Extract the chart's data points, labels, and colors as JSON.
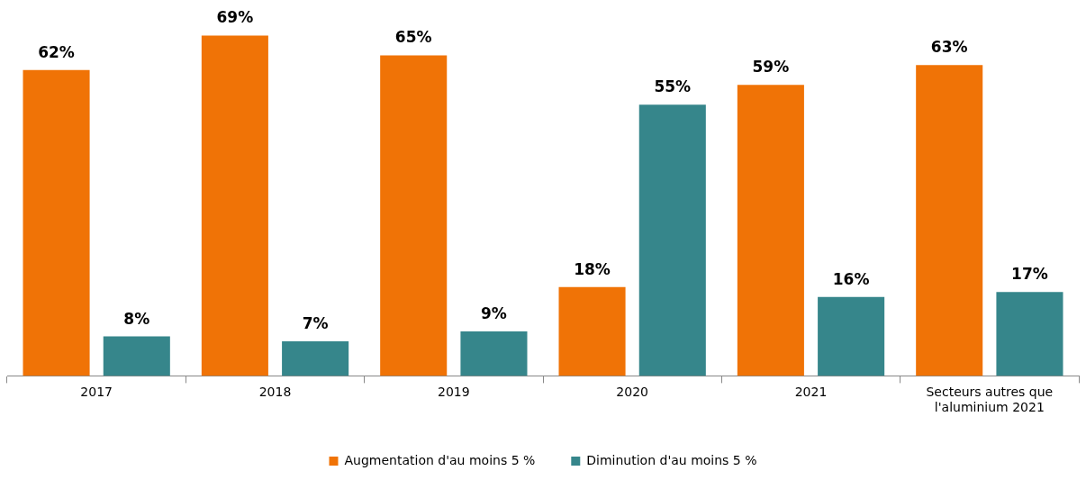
{
  "chart_data": {
    "type": "bar",
    "categories": [
      "2017",
      "2018",
      "2019",
      "2020",
      "2021",
      "Secteurs autres que l'aluminium 2021"
    ],
    "series": [
      {
        "name": "Augmentation d'au moins 5 %",
        "color": "#f07306",
        "values": [
          62,
          69,
          65,
          18,
          59,
          63
        ],
        "value_labels": [
          "62%",
          "69%",
          "65%",
          "18%",
          "59%",
          "63%"
        ]
      },
      {
        "name": "Diminution d'au moins 5 %",
        "color": "#36868b",
        "values": [
          8,
          7,
          9,
          55,
          16,
          17
        ],
        "value_labels": [
          "8%",
          "7%",
          "9%",
          "55%",
          "16%",
          "17%"
        ]
      }
    ],
    "tick_labels": "x",
    "grid": false,
    "legend": "bottom"
  }
}
